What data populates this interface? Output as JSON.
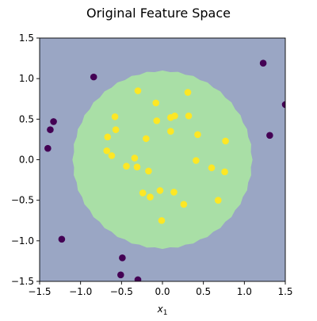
{
  "chart_data": {
    "type": "scatter",
    "title": "Original Feature Space",
    "xlabel": "x",
    "xlabel_subscript": "1",
    "ylabel": "",
    "xlim": [
      -1.5,
      1.5
    ],
    "ylim": [
      -1.5,
      1.5
    ],
    "xticks": [
      -1.5,
      -1.0,
      -0.5,
      0.0,
      0.5,
      1.0,
      1.5
    ],
    "yticks": [
      -1.5,
      -1.0,
      -0.5,
      0.0,
      0.5,
      1.0,
      1.5
    ],
    "tick_labels": [
      "−1.5",
      "−1.0",
      "−0.5",
      "0.0",
      "0.5",
      "1.0",
      "1.5"
    ],
    "grid": false,
    "background_region": {
      "label": "outer class region",
      "color": "#9aa6c4"
    },
    "decision_region": {
      "shape": "circle",
      "center": [
        0.0,
        0.0
      ],
      "radius": 1.1,
      "color": "#a9dfa6"
    },
    "classes": [
      {
        "color": "#440154",
        "points": [
          [
            -0.84,
            1.02
          ],
          [
            -1.33,
            0.47
          ],
          [
            -1.37,
            0.37
          ],
          [
            -1.4,
            0.14
          ],
          [
            -1.23,
            -0.98
          ],
          [
            -0.49,
            -1.21
          ],
          [
            -0.51,
            -1.42
          ],
          [
            -0.3,
            -1.48
          ],
          [
            1.23,
            1.19
          ],
          [
            1.5,
            0.68
          ],
          [
            1.31,
            0.3
          ]
        ]
      },
      {
        "color": "#fde725",
        "points": [
          [
            -0.3,
            0.85
          ],
          [
            -0.08,
            0.7
          ],
          [
            0.31,
            0.83
          ],
          [
            -0.58,
            0.53
          ],
          [
            0.1,
            0.52
          ],
          [
            0.15,
            0.54
          ],
          [
            0.32,
            0.54
          ],
          [
            -0.07,
            0.48
          ],
          [
            -0.57,
            0.37
          ],
          [
            0.1,
            0.35
          ],
          [
            -0.67,
            0.28
          ],
          [
            0.43,
            0.31
          ],
          [
            -0.2,
            0.26
          ],
          [
            0.77,
            0.23
          ],
          [
            -0.68,
            0.11
          ],
          [
            -0.62,
            0.05
          ],
          [
            -0.34,
            0.02
          ],
          [
            0.41,
            -0.01
          ],
          [
            -0.44,
            -0.08
          ],
          [
            -0.31,
            -0.09
          ],
          [
            0.6,
            -0.1
          ],
          [
            -0.17,
            -0.14
          ],
          [
            0.76,
            -0.15
          ],
          [
            -0.03,
            -0.38
          ],
          [
            0.14,
            -0.4
          ],
          [
            -0.24,
            -0.41
          ],
          [
            -0.15,
            -0.46
          ],
          [
            0.68,
            -0.5
          ],
          [
            0.26,
            -0.55
          ],
          [
            -0.01,
            -0.75
          ]
        ]
      }
    ]
  }
}
